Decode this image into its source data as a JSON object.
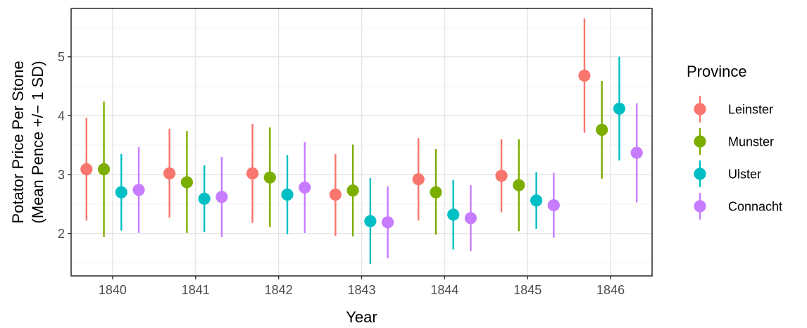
{
  "chart_data": {
    "type": "scatter",
    "subtype": "point-range (mean ± 1 SD, dodged)",
    "xlabel": "Year",
    "ylabel_lines": [
      "Potator Price Per Stone",
      "(Mean Pence +/− 1 SD)"
    ],
    "categories": [
      "1840",
      "1841",
      "1842",
      "1843",
      "1844",
      "1845",
      "1846"
    ],
    "ylim": [
      1.28,
      5.82
    ],
    "yticks": [
      2,
      3,
      4,
      5
    ],
    "ytick_labels": [
      "2",
      "3",
      "4",
      "5"
    ],
    "grid": true,
    "legend": {
      "title": "Province",
      "placement": "right"
    },
    "series": [
      {
        "name": "Leinster",
        "color": "#F8766D",
        "mean": [
          3.09,
          3.02,
          3.02,
          2.66,
          2.92,
          2.98,
          4.68
        ],
        "low": [
          2.22,
          2.27,
          2.18,
          1.96,
          2.22,
          2.36,
          3.71
        ],
        "high": [
          3.96,
          3.78,
          3.86,
          3.35,
          3.62,
          3.6,
          5.65
        ]
      },
      {
        "name": "Munster",
        "color": "#7CAE00",
        "mean": [
          3.09,
          2.87,
          2.95,
          2.73,
          2.7,
          2.82,
          3.76
        ],
        "low": [
          1.94,
          2.01,
          2.11,
          1.95,
          1.98,
          2.04,
          2.93
        ],
        "high": [
          4.24,
          3.74,
          3.8,
          3.51,
          3.43,
          3.6,
          4.59
        ]
      },
      {
        "name": "Ulster",
        "color": "#00BFC4",
        "mean": [
          2.7,
          2.59,
          2.66,
          2.21,
          2.32,
          2.56,
          4.12
        ],
        "low": [
          2.05,
          2.02,
          1.99,
          1.48,
          1.73,
          2.08,
          3.24
        ],
        "high": [
          3.35,
          3.16,
          3.33,
          2.94,
          2.91,
          3.04,
          5.0
        ]
      },
      {
        "name": "Connacht",
        "color": "#C77CFF",
        "mean": [
          2.74,
          2.62,
          2.78,
          2.19,
          2.26,
          2.48,
          3.37
        ],
        "low": [
          2.01,
          1.94,
          2.01,
          1.58,
          1.7,
          1.93,
          2.53
        ],
        "high": [
          3.47,
          3.3,
          3.55,
          2.8,
          2.82,
          3.03,
          4.21
        ]
      }
    ]
  }
}
